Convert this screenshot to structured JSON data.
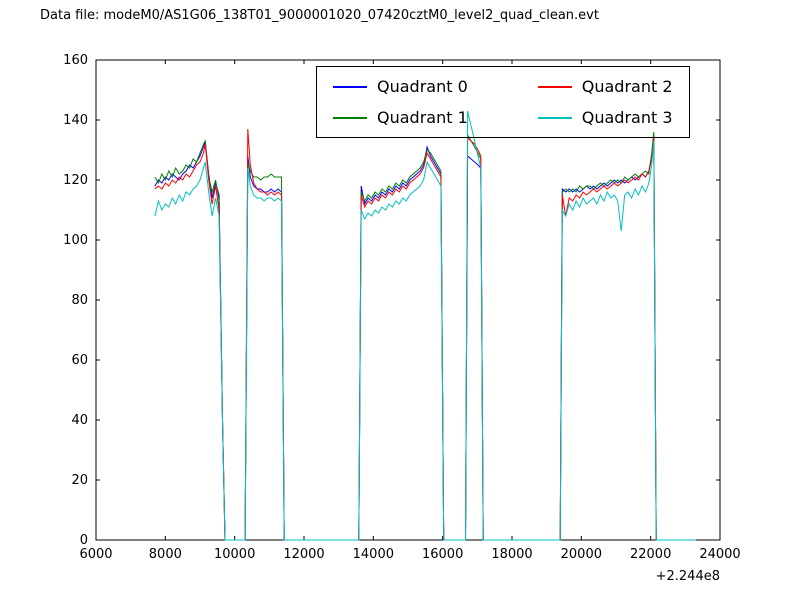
{
  "title": "Data file: modeM0/AS1G06_138T01_9000001020_07420cztM0_level2_quad_clean.evt",
  "legend": {
    "entries": [
      {
        "label": "Quadrant 0",
        "color": "#0000ff"
      },
      {
        "label": "Quadrant 1",
        "color": "#008000"
      },
      {
        "label": "Quadrant 2",
        "color": "#ff0000"
      },
      {
        "label": "Quadrant 3",
        "color": "#00bfbf"
      }
    ]
  },
  "chart_data": {
    "type": "line",
    "title": "Data file: modeM0/AS1G06_138T01_9000001020_07420cztM0_level2_quad_clean.evt",
    "xlabel": "",
    "ylabel": "",
    "xlim": [
      6000,
      24000
    ],
    "ylim": [
      0,
      160
    ],
    "xticks": [
      6000,
      8000,
      10000,
      12000,
      14000,
      16000,
      18000,
      20000,
      22000,
      24000
    ],
    "yticks": [
      0,
      20,
      40,
      60,
      80,
      100,
      120,
      140,
      160
    ],
    "x_offset_label": "+2.244e8",
    "grid": false,
    "legend_position": "upper center",
    "x": [
      7700,
      7800,
      7900,
      8000,
      8100,
      8200,
      8300,
      8400,
      8500,
      8600,
      8700,
      8800,
      8900,
      9000,
      9100,
      9150,
      9250,
      9350,
      9450,
      9550,
      9650,
      9720,
      9800,
      10250,
      10300,
      10380,
      10450,
      10550,
      10650,
      10750,
      10850,
      10950,
      11050,
      11150,
      11250,
      11350,
      11430,
      11500,
      13520,
      13580,
      13650,
      13750,
      13850,
      13950,
      14050,
      14150,
      14250,
      14350,
      14450,
      14550,
      14650,
      14750,
      14850,
      14950,
      15050,
      15150,
      15250,
      15350,
      15450,
      15550,
      15650,
      15750,
      15850,
      15950,
      16030,
      16100,
      16600,
      16660,
      16720,
      16820,
      16920,
      17020,
      17100,
      17170,
      19330,
      19390,
      19450,
      19550,
      19650,
      19750,
      19850,
      19950,
      20050,
      20150,
      20250,
      20350,
      20450,
      20550,
      20650,
      20750,
      20850,
      20950,
      21050,
      21150,
      21250,
      21350,
      21450,
      21550,
      21650,
      21750,
      21850,
      21950,
      22030,
      22090,
      22160,
      22250,
      23300
    ],
    "series": [
      {
        "name": "Quadrant 0",
        "color": "#0000ff",
        "values": [
          118,
          120,
          119,
          121,
          120,
          122,
          121,
          120,
          122,
          123,
          125,
          124,
          126,
          128,
          131,
          133,
          122,
          114,
          119,
          115,
          40,
          0,
          0,
          0,
          0,
          128,
          121,
          118,
          117,
          117,
          116,
          116,
          117,
          116,
          117,
          116,
          0,
          0,
          0,
          0,
          118,
          112,
          114,
          113,
          115,
          114,
          116,
          115,
          117,
          116,
          118,
          117,
          119,
          118,
          120,
          121,
          122,
          123,
          125,
          131,
          128,
          126,
          124,
          122,
          0,
          0,
          0,
          0,
          128,
          127,
          126,
          125,
          124,
          0,
          0,
          0,
          117,
          116,
          117,
          116,
          117,
          116,
          117,
          118,
          117,
          118,
          117,
          118,
          119,
          118,
          119,
          120,
          119,
          120,
          119,
          120,
          121,
          120,
          121,
          122,
          121,
          123,
          128,
          135,
          0,
          0,
          0
        ]
      },
      {
        "name": "Quadrant 1",
        "color": "#008000",
        "values": [
          121,
          119,
          122,
          120,
          123,
          121,
          124,
          122,
          123,
          125,
          124,
          127,
          126,
          129,
          132,
          133,
          121,
          116,
          120,
          113,
          40,
          0,
          0,
          0,
          0,
          126,
          123,
          121,
          121,
          120,
          121,
          121,
          122,
          121,
          121,
          121,
          0,
          0,
          0,
          0,
          116,
          113,
          115,
          114,
          116,
          115,
          117,
          116,
          118,
          117,
          119,
          118,
          120,
          119,
          121,
          122,
          123,
          124,
          126,
          130,
          129,
          127,
          125,
          123,
          0,
          0,
          0,
          0,
          135,
          133,
          131,
          129,
          127,
          0,
          0,
          0,
          116,
          117,
          116,
          117,
          116,
          118,
          117,
          118,
          118,
          117,
          118,
          119,
          118,
          119,
          120,
          119,
          120,
          119,
          121,
          120,
          121,
          122,
          121,
          122,
          123,
          122,
          129,
          136,
          0,
          0,
          0
        ]
      },
      {
        "name": "Quadrant 2",
        "color": "#ff0000",
        "values": [
          117,
          118,
          117,
          119,
          118,
          120,
          119,
          121,
          120,
          122,
          121,
          123,
          125,
          126,
          129,
          132,
          120,
          112,
          118,
          110,
          40,
          0,
          0,
          0,
          0,
          137,
          125,
          119,
          117,
          116,
          116,
          115,
          116,
          115,
          116,
          115,
          0,
          0,
          0,
          0,
          115,
          111,
          113,
          112,
          114,
          113,
          115,
          114,
          116,
          115,
          117,
          116,
          118,
          117,
          119,
          120,
          121,
          122,
          124,
          129,
          127,
          125,
          123,
          121,
          0,
          0,
          0,
          0,
          134,
          133,
          132,
          130,
          128,
          0,
          0,
          0,
          115,
          108,
          114,
          113,
          115,
          114,
          116,
          115,
          116,
          117,
          116,
          117,
          118,
          117,
          118,
          119,
          118,
          119,
          120,
          119,
          120,
          121,
          120,
          122,
          121,
          123,
          127,
          134,
          0,
          0,
          0
        ]
      },
      {
        "name": "Quadrant 3",
        "color": "#00bfbf",
        "values": [
          108,
          113,
          110,
          112,
          111,
          114,
          112,
          115,
          113,
          116,
          115,
          117,
          118,
          120,
          124,
          126,
          116,
          108,
          114,
          108,
          40,
          0,
          0,
          0,
          0,
          124,
          118,
          115,
          114,
          114,
          113,
          114,
          114,
          113,
          114,
          113,
          0,
          0,
          0,
          0,
          110,
          107,
          109,
          108,
          110,
          109,
          111,
          110,
          112,
          111,
          113,
          112,
          114,
          113,
          115,
          116,
          117,
          118,
          120,
          126,
          124,
          122,
          120,
          118,
          0,
          0,
          0,
          0,
          143,
          138,
          133,
          128,
          124,
          0,
          0,
          0,
          110,
          108,
          112,
          110,
          113,
          111,
          114,
          112,
          113,
          114,
          112,
          115,
          113,
          116,
          114,
          115,
          113,
          103,
          115,
          116,
          114,
          117,
          115,
          118,
          116,
          119,
          125,
          133,
          0,
          0,
          0
        ]
      }
    ]
  }
}
